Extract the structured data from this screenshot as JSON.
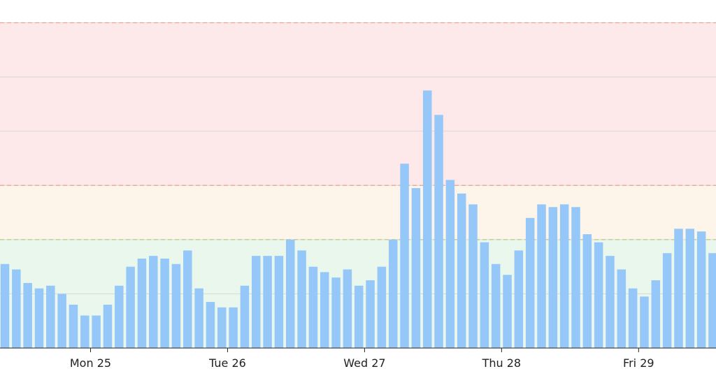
{
  "chart_data": {
    "type": "bar",
    "x_ticks": [
      {
        "label": "Mon 25",
        "index": 7.5
      },
      {
        "label": "Tue 26",
        "index": 19.5
      },
      {
        "label": "Wed 27",
        "index": 31.5
      },
      {
        "label": "Thu 28",
        "index": 43.5
      },
      {
        "label": "Fri 29",
        "index": 55.5
      }
    ],
    "values": [
      31,
      29,
      24,
      22,
      23,
      20,
      16,
      12,
      12,
      16,
      23,
      30,
      33,
      34,
      33,
      31,
      36,
      22,
      17,
      15,
      15,
      23,
      34,
      34,
      34,
      40,
      36,
      30,
      28,
      26,
      29,
      23,
      25,
      30,
      40,
      68,
      59,
      95,
      86,
      62,
      57,
      53,
      39,
      31,
      27,
      36,
      48,
      53,
      52,
      53,
      52,
      42,
      39,
      34,
      29,
      22,
      19,
      25,
      35,
      44,
      44,
      43,
      35
    ],
    "ylim": [
      0,
      120
    ],
    "gridlines": [
      20,
      40,
      60,
      80,
      100,
      120
    ],
    "bands": [
      {
        "from": 0,
        "to": 40,
        "color": "#eaf7ec",
        "line": "#b4c77c"
      },
      {
        "from": 40,
        "to": 60,
        "color": "#fdf5ea",
        "line": "#e8a58f"
      },
      {
        "from": 60,
        "to": 120,
        "color": "#fde8ea",
        "line": "#e8a58f"
      }
    ],
    "bar_color": "#95c8f8",
    "grid": true,
    "legend": "none"
  }
}
